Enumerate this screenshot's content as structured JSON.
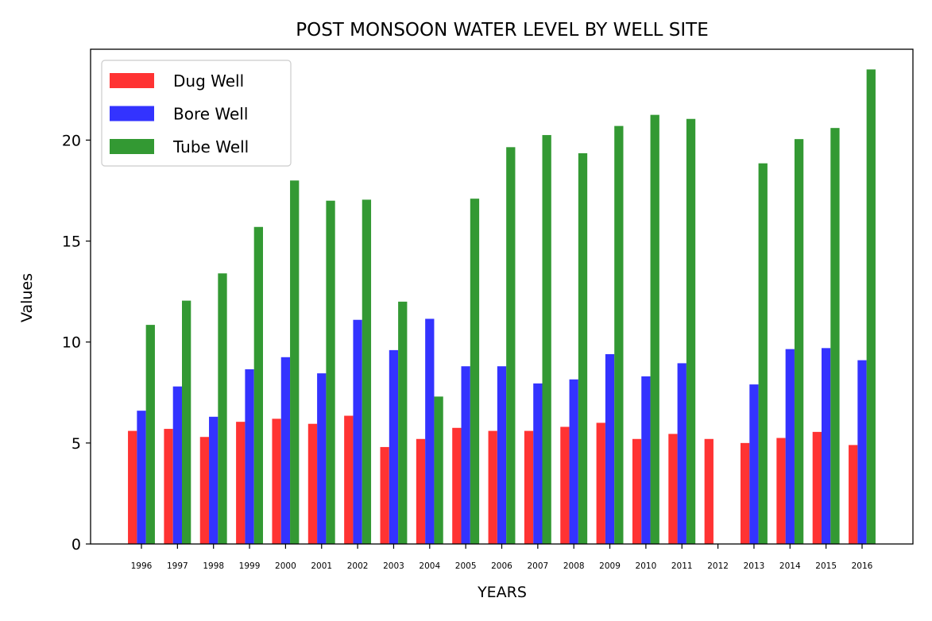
{
  "chart_data": {
    "type": "bar",
    "title": "POST MONSOON WATER LEVEL BY WELL SITE",
    "xlabel": "YEARS",
    "ylabel": "Values",
    "ylim": [
      0,
      24.5
    ],
    "yticks": [
      0,
      5,
      10,
      15,
      20
    ],
    "grid": false,
    "legend_position": "upper-left",
    "categories": [
      "1996",
      "1997",
      "1998",
      "1999",
      "2000",
      "2001",
      "2002",
      "2003",
      "2004",
      "2005",
      "2006",
      "2007",
      "2008",
      "2009",
      "2010",
      "2011",
      "2012",
      "2013",
      "2014",
      "2015",
      "2016"
    ],
    "series": [
      {
        "name": "Dug Well",
        "color": "#ff3333",
        "values": [
          5.6,
          5.7,
          5.3,
          6.05,
          6.2,
          5.95,
          6.35,
          4.8,
          5.2,
          5.75,
          5.6,
          5.6,
          5.8,
          6.0,
          5.2,
          5.45,
          5.2,
          5.0,
          5.25,
          5.55,
          4.9
        ]
      },
      {
        "name": "Bore Well",
        "color": "#3333ff",
        "values": [
          6.6,
          7.8,
          6.3,
          8.65,
          9.25,
          8.45,
          11.1,
          9.6,
          11.15,
          8.8,
          8.8,
          7.95,
          8.15,
          9.4,
          8.3,
          8.95,
          0,
          7.9,
          9.65,
          9.7,
          9.1
        ]
      },
      {
        "name": "Tube Well",
        "color": "#339933",
        "values": [
          10.85,
          12.05,
          13.4,
          15.7,
          18.0,
          17.0,
          17.05,
          12.0,
          7.3,
          17.1,
          19.65,
          20.25,
          19.35,
          20.7,
          21.25,
          21.05,
          0,
          18.85,
          20.05,
          20.6,
          23.5
        ]
      }
    ]
  }
}
